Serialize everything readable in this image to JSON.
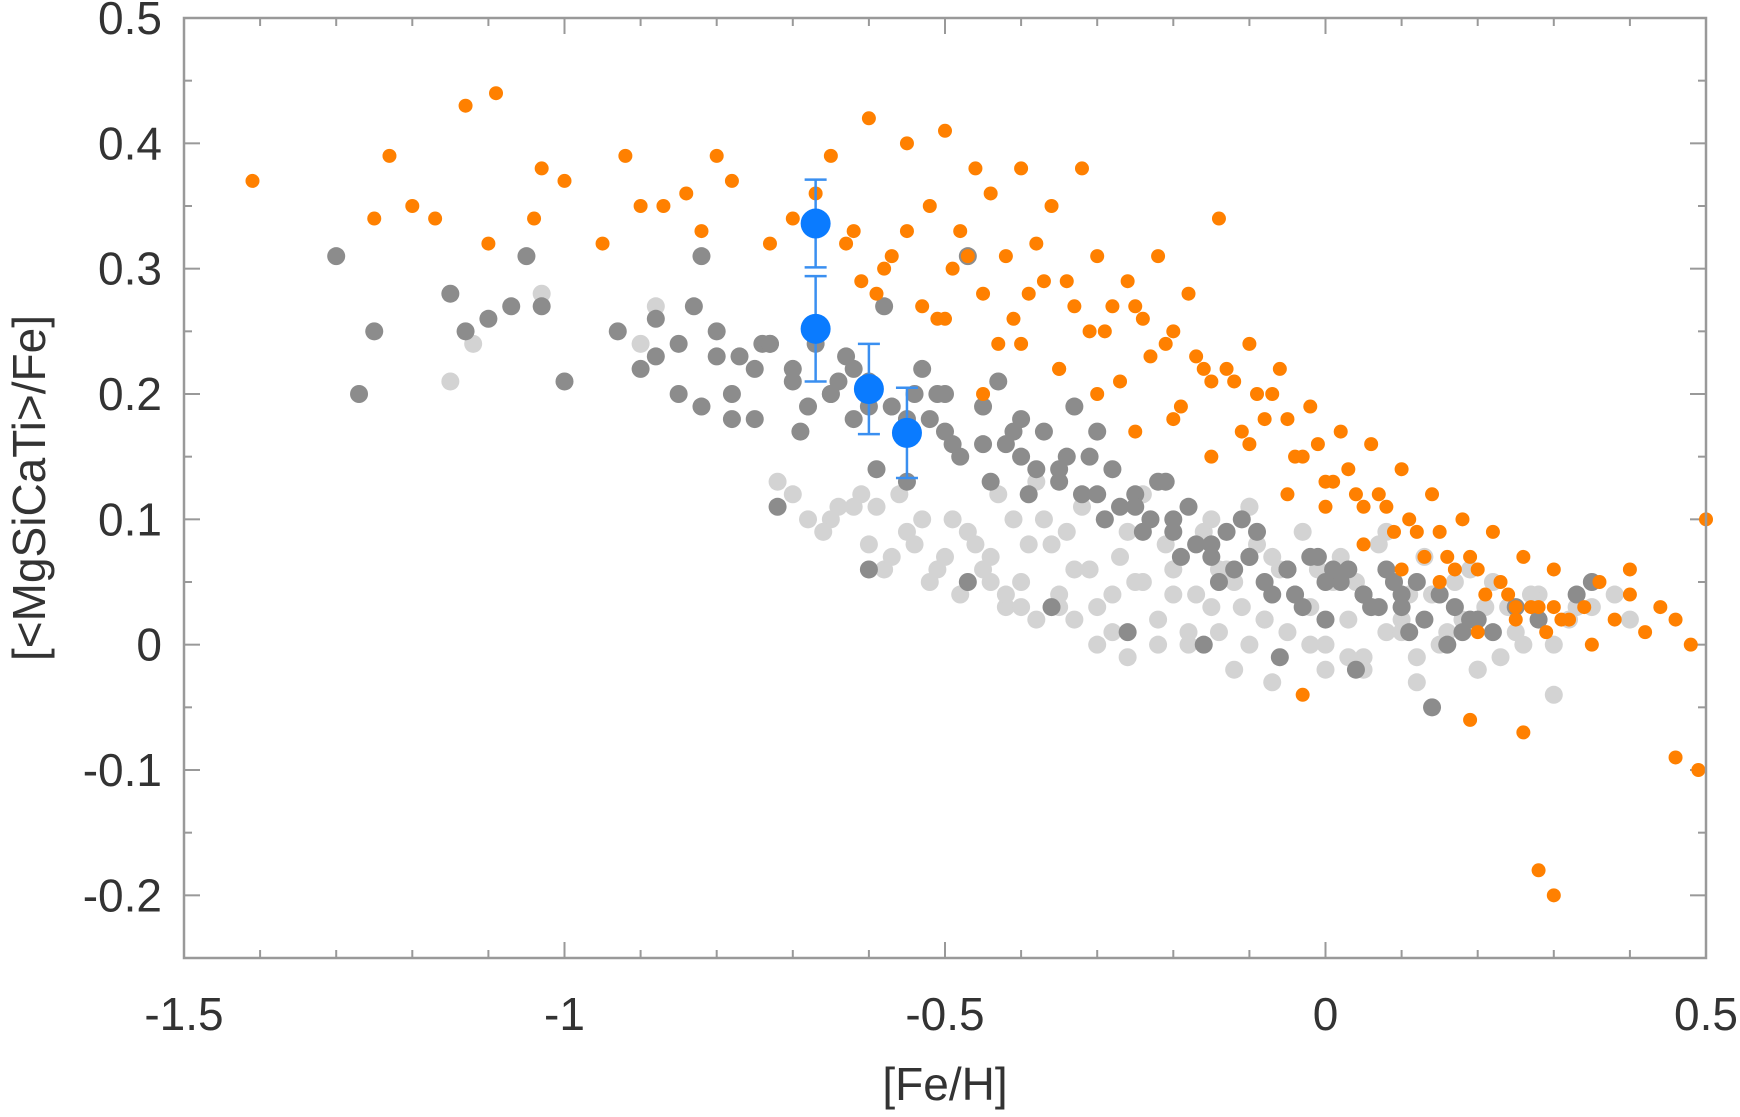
{
  "chart_data": {
    "type": "scatter",
    "title": "",
    "xlabel": "[Fe/H]",
    "ylabel": "[<MgSiCaTi>/Fe]",
    "xlim": [
      -1.5,
      0.5
    ],
    "ylim": [
      -0.25,
      0.5
    ],
    "xticks": [
      {
        "value": -1.5,
        "label": "-1.5"
      },
      {
        "value": -1,
        "label": "-1"
      },
      {
        "value": -0.5,
        "label": "-0.5"
      },
      {
        "value": 0,
        "label": "0"
      },
      {
        "value": 0.5,
        "label": "0.5"
      }
    ],
    "yticks": [
      {
        "value": 0.5,
        "label": "0.5"
      },
      {
        "value": 0.4,
        "label": "0.4"
      },
      {
        "value": 0.3,
        "label": "0.3"
      },
      {
        "value": 0.2,
        "label": "0.2"
      },
      {
        "value": 0.1,
        "label": "0.1"
      },
      {
        "value": 0,
        "label": "0"
      },
      {
        "value": -0.1,
        "label": "-0.1"
      },
      {
        "value": -0.2,
        "label": "-0.2"
      }
    ],
    "grid": false,
    "series": [
      {
        "name": "light-gray",
        "color": "#d3d3d3",
        "x": [
          -1.15,
          -1.12,
          -1.03,
          -0.9,
          -0.88,
          -0.72,
          -0.7,
          -0.65,
          -0.62,
          -0.6,
          -0.58,
          -0.55,
          -0.52,
          -0.5,
          -0.48,
          -0.45,
          -0.42,
          -0.4,
          -0.38,
          -0.35,
          -0.33,
          -0.3,
          -0.28,
          -0.25,
          -0.22,
          -0.2,
          -0.18,
          -0.15,
          -0.12,
          -0.1,
          -0.08,
          -0.05,
          -0.02,
          0.0,
          0.03,
          0.05,
          0.08,
          0.1,
          0.12,
          0.15,
          0.18,
          0.2,
          0.25,
          0.3,
          0.35,
          0.4,
          -0.47,
          -0.44,
          -0.36,
          -0.31,
          -0.27,
          -0.24,
          -0.21,
          -0.17,
          -0.14,
          -0.11,
          -0.07,
          -0.04,
          0.01,
          0.06,
          0.11,
          0.16,
          0.21,
          0.26,
          0.32,
          -0.56,
          -0.53,
          -0.41,
          -0.34,
          -0.29,
          -0.26,
          -0.19,
          -0.16,
          -0.13,
          -0.09,
          -0.06,
          -0.01,
          0.04,
          0.09,
          0.14,
          0.19,
          0.24,
          0.28,
          -0.64,
          -0.61,
          -0.57,
          -0.49,
          -0.43,
          -0.39,
          -0.37,
          -0.32,
          -0.23,
          -0.2,
          -0.15,
          -0.1,
          -0.03,
          0.02,
          0.07,
          0.13,
          0.17,
          0.22,
          0.27,
          0.33,
          0.38,
          -0.46,
          -0.42,
          -0.35,
          -0.3,
          -0.26,
          -0.18,
          -0.12,
          -0.07,
          0.0,
          0.05,
          0.12,
          0.2,
          0.3,
          -0.68,
          -0.66,
          -0.59,
          -0.54,
          -0.51,
          -0.44,
          -0.4,
          -0.33,
          -0.28,
          -0.22,
          -0.14,
          -0.08,
          -0.02,
          0.03,
          0.1,
          0.16,
          0.23,
          -0.38,
          -0.24,
          -0.1,
          0.08
        ],
        "y": [
          0.21,
          0.24,
          0.28,
          0.24,
          0.27,
          0.13,
          0.12,
          0.1,
          0.11,
          0.08,
          0.06,
          0.09,
          0.05,
          0.07,
          0.04,
          0.06,
          0.03,
          0.05,
          0.02,
          0.04,
          0.06,
          0.03,
          0.01,
          0.05,
          0.02,
          0.04,
          0.01,
          0.03,
          0.05,
          0.0,
          0.02,
          0.01,
          0.03,
          0.0,
          0.02,
          -0.01,
          0.01,
          0.02,
          -0.01,
          0.0,
          0.02,
          -0.02,
          0.01,
          0.0,
          0.03,
          0.02,
          0.09,
          0.07,
          0.08,
          0.06,
          0.07,
          0.05,
          0.08,
          0.04,
          0.06,
          0.03,
          0.07,
          0.04,
          0.05,
          0.03,
          0.04,
          0.01,
          0.03,
          0.0,
          0.02,
          0.12,
          0.1,
          0.1,
          0.09,
          0.1,
          0.09,
          0.07,
          0.09,
          0.06,
          0.08,
          0.06,
          0.06,
          0.05,
          0.05,
          0.04,
          0.06,
          0.03,
          0.04,
          0.11,
          0.12,
          0.07,
          0.1,
          0.12,
          0.08,
          0.1,
          0.11,
          0.1,
          0.06,
          0.1,
          0.11,
          0.09,
          0.07,
          0.08,
          0.07,
          0.05,
          0.05,
          0.04,
          0.03,
          0.04,
          0.08,
          0.04,
          0.03,
          0.0,
          -0.01,
          0.0,
          -0.02,
          -0.03,
          -0.02,
          -0.02,
          -0.03,
          -0.02,
          -0.04,
          0.1,
          0.09,
          0.11,
          0.08,
          0.06,
          0.05,
          0.03,
          0.02,
          0.04,
          0.0,
          0.01,
          0.02,
          0.0,
          -0.01,
          0.01,
          0.0,
          -0.01,
          0.13,
          0.12,
          0.11,
          0.09
        ]
      },
      {
        "name": "dark-gray",
        "color": "#8c8c8c",
        "x": [
          -1.3,
          -1.27,
          -1.25,
          -1.15,
          -1.13,
          -1.1,
          -1.07,
          -1.05,
          -1.03,
          -1.0,
          -0.93,
          -0.9,
          -0.88,
          -0.85,
          -0.83,
          -0.82,
          -0.8,
          -0.78,
          -0.77,
          -0.75,
          -0.73,
          -0.72,
          -0.7,
          -0.68,
          -0.67,
          -0.65,
          -0.63,
          -0.62,
          -0.6,
          -0.58,
          -0.57,
          -0.55,
          -0.53,
          -0.52,
          -0.5,
          -0.48,
          -0.47,
          -0.45,
          -0.43,
          -0.42,
          -0.4,
          -0.38,
          -0.37,
          -0.35,
          -0.33,
          -0.32,
          -0.3,
          -0.28,
          -0.27,
          -0.25,
          -0.23,
          -0.22,
          -0.2,
          -0.18,
          -0.17,
          -0.15,
          -0.13,
          -0.12,
          -0.1,
          -0.08,
          -0.07,
          -0.05,
          -0.03,
          -0.02,
          0.0,
          0.02,
          0.03,
          0.05,
          0.07,
          0.08,
          0.1,
          0.12,
          0.13,
          0.15,
          0.17,
          0.18,
          0.2,
          0.22,
          0.25,
          0.28,
          0.33,
          0.35,
          -0.85,
          -0.8,
          -0.75,
          -0.7,
          -0.65,
          -0.6,
          -0.55,
          -0.5,
          -0.45,
          -0.4,
          -0.35,
          -0.3,
          -0.25,
          -0.2,
          -0.15,
          -0.1,
          -0.05,
          0.0,
          0.05,
          0.1,
          -0.88,
          -0.82,
          -0.78,
          -0.74,
          -0.69,
          -0.64,
          -0.59,
          -0.54,
          -0.49,
          -0.44,
          -0.39,
          -0.34,
          -0.29,
          -0.24,
          -0.19,
          -0.14,
          -0.09,
          -0.04,
          0.01,
          0.06,
          0.11,
          0.16,
          -0.73,
          -0.62,
          -0.51,
          -0.41,
          -0.31,
          -0.21,
          -0.11,
          -0.01,
          0.09,
          0.19,
          -0.6,
          -0.47,
          -0.36,
          -0.26,
          -0.16,
          -0.06,
          0.04,
          0.14
        ],
        "y": [
          0.31,
          0.2,
          0.25,
          0.28,
          0.25,
          0.26,
          0.27,
          0.31,
          0.27,
          0.21,
          0.25,
          0.22,
          0.26,
          0.2,
          0.27,
          0.31,
          0.25,
          0.2,
          0.23,
          0.18,
          0.24,
          0.11,
          0.22,
          0.19,
          0.24,
          0.2,
          0.23,
          0.18,
          0.21,
          0.27,
          0.19,
          0.13,
          0.22,
          0.18,
          0.2,
          0.15,
          0.31,
          0.19,
          0.21,
          0.16,
          0.18,
          0.14,
          0.17,
          0.13,
          0.19,
          0.12,
          0.17,
          0.14,
          0.11,
          0.12,
          0.1,
          0.13,
          0.09,
          0.11,
          0.08,
          0.07,
          0.09,
          0.06,
          0.07,
          0.05,
          0.04,
          0.06,
          0.03,
          0.07,
          0.02,
          0.05,
          0.06,
          0.04,
          0.03,
          0.06,
          0.04,
          0.05,
          0.02,
          0.04,
          0.03,
          0.01,
          0.02,
          0.01,
          0.03,
          0.02,
          0.04,
          0.05,
          0.24,
          0.23,
          0.22,
          0.21,
          0.2,
          0.19,
          0.18,
          0.17,
          0.16,
          0.15,
          0.14,
          0.12,
          0.11,
          0.1,
          0.08,
          0.07,
          0.06,
          0.05,
          0.04,
          0.03,
          0.23,
          0.19,
          0.18,
          0.24,
          0.17,
          0.21,
          0.14,
          0.2,
          0.16,
          0.13,
          0.12,
          0.15,
          0.1,
          0.09,
          0.07,
          0.05,
          0.09,
          0.04,
          0.06,
          0.03,
          0.01,
          0.0,
          0.24,
          0.22,
          0.2,
          0.17,
          0.15,
          0.13,
          0.1,
          0.07,
          0.05,
          0.02,
          0.06,
          0.05,
          0.03,
          0.01,
          0.0,
          -0.01,
          -0.02,
          -0.05
        ]
      },
      {
        "name": "orange",
        "color": "#ff8000",
        "x": [
          -1.41,
          -1.25,
          -1.23,
          -1.2,
          -1.17,
          -1.13,
          -1.09,
          -1.1,
          -1.04,
          -1.03,
          -1.0,
          -0.95,
          -0.92,
          -0.9,
          -0.87,
          -0.84,
          -0.82,
          -0.8,
          -0.78,
          -0.73,
          -0.7,
          -0.67,
          -0.65,
          -0.62,
          -0.6,
          -0.58,
          -0.55,
          -0.52,
          -0.5,
          -0.48,
          -0.46,
          -0.44,
          -0.42,
          -0.4,
          -0.38,
          -0.36,
          -0.34,
          -0.32,
          -0.3,
          -0.28,
          -0.26,
          -0.24,
          -0.22,
          -0.2,
          -0.18,
          -0.16,
          -0.14,
          -0.12,
          -0.1,
          -0.08,
          -0.06,
          -0.04,
          -0.02,
          0.0,
          0.02,
          0.04,
          0.06,
          0.08,
          0.1,
          0.12,
          0.14,
          0.16,
          0.18,
          0.2,
          0.22,
          0.24,
          0.26,
          0.28,
          0.3,
          0.32,
          0.34,
          0.36,
          0.38,
          0.4,
          0.42,
          0.44,
          0.46,
          0.48,
          0.5,
          -0.61,
          -0.57,
          -0.53,
          -0.49,
          -0.45,
          -0.41,
          -0.37,
          -0.33,
          -0.29,
          -0.25,
          -0.21,
          -0.17,
          -0.13,
          -0.09,
          -0.05,
          -0.01,
          0.03,
          0.07,
          0.11,
          0.15,
          0.19,
          0.23,
          0.27,
          0.31,
          0.35,
          -0.63,
          -0.59,
          -0.55,
          -0.51,
          -0.47,
          -0.43,
          -0.39,
          -0.35,
          -0.31,
          -0.27,
          -0.23,
          -0.19,
          -0.15,
          -0.11,
          -0.07,
          -0.03,
          0.01,
          0.05,
          0.09,
          0.13,
          0.17,
          0.21,
          0.25,
          0.29,
          -0.5,
          -0.4,
          -0.3,
          -0.2,
          -0.1,
          0.0,
          0.1,
          0.2,
          0.3,
          0.4,
          -0.45,
          -0.35,
          -0.25,
          -0.15,
          -0.05,
          0.05,
          0.15,
          0.25,
          -0.03,
          0.19,
          0.26,
          0.28,
          0.3,
          0.46,
          0.49
        ],
        "y": [
          0.37,
          0.34,
          0.39,
          0.35,
          0.34,
          0.43,
          0.44,
          0.32,
          0.34,
          0.38,
          0.37,
          0.32,
          0.39,
          0.35,
          0.35,
          0.36,
          0.33,
          0.39,
          0.37,
          0.32,
          0.34,
          0.36,
          0.39,
          0.33,
          0.42,
          0.3,
          0.4,
          0.35,
          0.41,
          0.33,
          0.38,
          0.36,
          0.31,
          0.38,
          0.32,
          0.35,
          0.29,
          0.38,
          0.31,
          0.27,
          0.29,
          0.26,
          0.31,
          0.25,
          0.28,
          0.22,
          0.34,
          0.21,
          0.24,
          0.18,
          0.22,
          0.15,
          0.19,
          0.13,
          0.17,
          0.12,
          0.16,
          0.11,
          0.14,
          0.09,
          0.12,
          0.07,
          0.1,
          0.06,
          0.09,
          0.04,
          0.07,
          0.03,
          0.06,
          0.02,
          0.03,
          0.05,
          0.02,
          0.04,
          0.01,
          0.03,
          0.02,
          0.0,
          0.1,
          0.29,
          0.31,
          0.27,
          0.3,
          0.28,
          0.26,
          0.29,
          0.27,
          0.25,
          0.27,
          0.24,
          0.23,
          0.22,
          0.2,
          0.18,
          0.16,
          0.14,
          0.12,
          0.1,
          0.09,
          0.07,
          0.05,
          0.03,
          0.02,
          0.0,
          0.32,
          0.28,
          0.33,
          0.26,
          0.31,
          0.24,
          0.28,
          0.22,
          0.25,
          0.21,
          0.23,
          0.19,
          0.21,
          0.17,
          0.2,
          0.15,
          0.13,
          0.11,
          0.09,
          0.07,
          0.06,
          0.04,
          0.03,
          0.01,
          0.26,
          0.24,
          0.2,
          0.18,
          0.16,
          0.11,
          0.06,
          0.01,
          0.03,
          0.06,
          0.2,
          0.22,
          0.17,
          0.15,
          0.12,
          0.08,
          0.05,
          0.02,
          -0.04,
          -0.06,
          -0.07,
          -0.18,
          -0.2,
          -0.09,
          -0.1
        ]
      },
      {
        "name": "blue",
        "color": "#0a7bff",
        "x": [
          -0.67,
          -0.67,
          -0.6,
          -0.55
        ],
        "y": [
          0.336,
          0.252,
          0.204,
          0.169
        ],
        "yerr": [
          0.035,
          0.042,
          0.036,
          0.036
        ]
      }
    ]
  }
}
